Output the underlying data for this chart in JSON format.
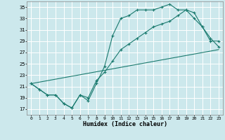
{
  "xlabel": "Humidex (Indice chaleur)",
  "background_color": "#cce8ec",
  "grid_color": "#ffffff",
  "line_color": "#1a7a6e",
  "xlim": [
    -0.5,
    23.5
  ],
  "ylim": [
    16,
    36
  ],
  "yticks": [
    17,
    19,
    21,
    23,
    25,
    27,
    29,
    31,
    33,
    35
  ],
  "xticks": [
    0,
    1,
    2,
    3,
    4,
    5,
    6,
    7,
    8,
    9,
    10,
    11,
    12,
    13,
    14,
    15,
    16,
    17,
    18,
    19,
    20,
    21,
    22,
    23
  ],
  "line1_x": [
    0,
    1,
    2,
    3,
    4,
    5,
    6,
    7,
    8,
    9,
    10,
    11,
    12,
    13,
    14,
    15,
    16,
    17,
    18,
    19,
    20,
    21,
    22,
    23
  ],
  "line1_y": [
    21.5,
    20.5,
    19.5,
    19.5,
    18.0,
    17.2,
    19.5,
    18.5,
    21.5,
    24.5,
    30.0,
    33.0,
    33.5,
    34.5,
    34.5,
    34.5,
    35.0,
    35.5,
    34.5,
    34.5,
    33.0,
    31.5,
    29.0,
    29.0
  ],
  "line2_x": [
    0,
    1,
    2,
    3,
    4,
    5,
    6,
    7,
    8,
    9,
    10,
    11,
    12,
    13,
    14,
    15,
    16,
    17,
    18,
    19,
    20,
    21,
    22,
    23
  ],
  "line2_y": [
    21.5,
    20.5,
    19.5,
    19.5,
    18.0,
    17.2,
    19.5,
    19.0,
    22.0,
    23.5,
    25.5,
    27.5,
    28.5,
    29.5,
    30.5,
    31.5,
    32.0,
    32.5,
    33.5,
    34.5,
    34.0,
    31.5,
    29.5,
    28.0
  ],
  "line3_x": [
    0,
    23
  ],
  "line3_y": [
    21.5,
    27.5
  ]
}
